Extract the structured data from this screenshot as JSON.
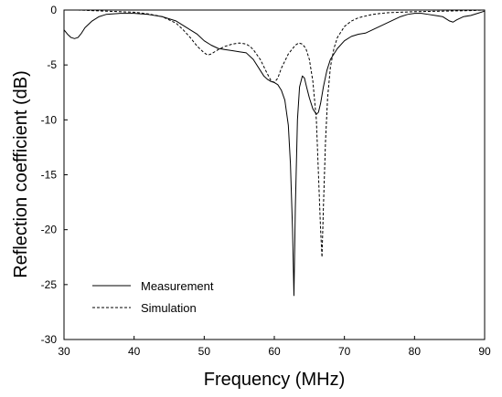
{
  "chart_data": {
    "type": "line",
    "title": "",
    "xlabel": "Frequency (MHz)",
    "ylabel": "Reflection coefficient (dB)",
    "xlim": [
      30,
      90
    ],
    "ylim": [
      -30,
      0
    ],
    "xticks": [
      30,
      40,
      50,
      60,
      70,
      80,
      90
    ],
    "yticks": [
      0,
      -5,
      -10,
      -15,
      -20,
      -25,
      -30
    ],
    "grid": false,
    "legend_position": "bottom-left",
    "series": [
      {
        "name": "Measurement",
        "style": "solid",
        "x": [
          30,
          30.5,
          31,
          31.5,
          32,
          32.5,
          33,
          34,
          35,
          36,
          38,
          40,
          42,
          44,
          46,
          48,
          49,
          50,
          51,
          52,
          53,
          54,
          55,
          56,
          57,
          58,
          58.5,
          59,
          59.5,
          60,
          60.5,
          61,
          61.5,
          62,
          62.3,
          62.6,
          62.8,
          63,
          63.3,
          63.6,
          64,
          64.3,
          64.6,
          65,
          65.5,
          66,
          66.3,
          66.6,
          67,
          67.5,
          68,
          69,
          70,
          71,
          72,
          73,
          74,
          75,
          76,
          77,
          78,
          79,
          80,
          81,
          82,
          83,
          84,
          85,
          85.5,
          86,
          87,
          88,
          89,
          90
        ],
        "values": [
          -1.8,
          -2.2,
          -2.5,
          -2.6,
          -2.5,
          -2.1,
          -1.6,
          -1.0,
          -0.6,
          -0.4,
          -0.3,
          -0.3,
          -0.4,
          -0.6,
          -1.0,
          -1.8,
          -2.2,
          -2.8,
          -3.2,
          -3.5,
          -3.6,
          -3.7,
          -3.8,
          -3.9,
          -4.5,
          -5.5,
          -6.0,
          -6.3,
          -6.5,
          -6.6,
          -6.8,
          -7.3,
          -8.2,
          -10.5,
          -14.0,
          -20.0,
          -26.0,
          -18.0,
          -10.0,
          -7.0,
          -6.0,
          -6.2,
          -7.0,
          -8.0,
          -9.0,
          -9.5,
          -9.3,
          -8.5,
          -7.0,
          -5.5,
          -4.5,
          -3.5,
          -2.8,
          -2.4,
          -2.2,
          -2.1,
          -1.8,
          -1.5,
          -1.2,
          -0.9,
          -0.6,
          -0.4,
          -0.3,
          -0.3,
          -0.4,
          -0.5,
          -0.6,
          -1.0,
          -1.1,
          -0.9,
          -0.6,
          -0.5,
          -0.3,
          -0.1
        ]
      },
      {
        "name": "Simulation",
        "style": "dashed",
        "x": [
          30,
          32,
          34,
          36,
          38,
          40,
          42,
          44,
          46,
          47,
          48,
          49,
          50,
          50.5,
          51,
          52,
          53,
          54,
          55,
          56,
          56.5,
          57,
          58,
          59,
          59.5,
          60,
          60.5,
          61,
          62,
          63,
          63.5,
          64,
          64.5,
          65,
          65.5,
          66,
          66.3,
          66.6,
          66.8,
          67,
          67.3,
          67.6,
          68,
          68.5,
          69,
          70,
          71,
          72,
          74,
          76,
          78,
          80,
          84,
          88,
          90
        ],
        "values": [
          0,
          0,
          -0.05,
          -0.1,
          -0.15,
          -0.2,
          -0.35,
          -0.6,
          -1.2,
          -1.8,
          -2.5,
          -3.3,
          -3.9,
          -4.1,
          -4.0,
          -3.6,
          -3.3,
          -3.1,
          -3.0,
          -3.1,
          -3.3,
          -3.6,
          -4.5,
          -5.8,
          -6.4,
          -6.6,
          -6.2,
          -5.3,
          -4.0,
          -3.2,
          -3.0,
          -3.1,
          -3.5,
          -4.5,
          -6.5,
          -10.0,
          -15.0,
          -20.0,
          -22.5,
          -18.0,
          -12.0,
          -8.0,
          -5.2,
          -3.5,
          -2.5,
          -1.5,
          -1.0,
          -0.7,
          -0.4,
          -0.25,
          -0.2,
          -0.15,
          -0.1,
          -0.05,
          0
        ]
      }
    ]
  }
}
